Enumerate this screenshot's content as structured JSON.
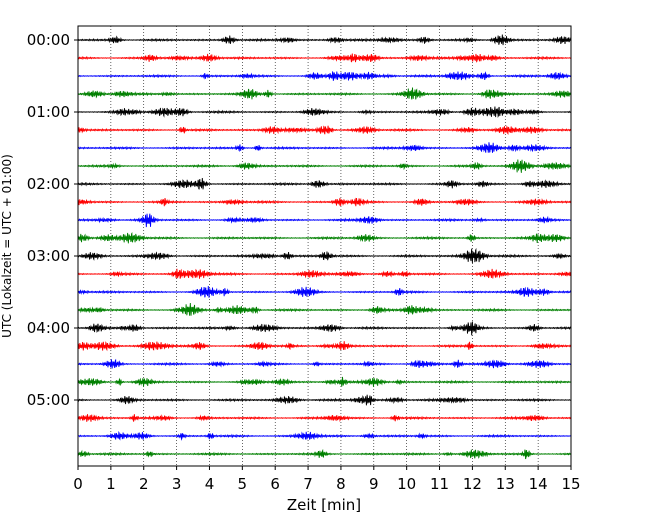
{
  "chart_data": {
    "type": "line",
    "xlabel": "Zeit  [min]",
    "ylabel": "UTC (Lokalzeit = UTC + 01:00)",
    "xlim": [
      0,
      15
    ],
    "x_ticks": [
      0,
      1,
      2,
      3,
      4,
      5,
      6,
      7,
      8,
      9,
      10,
      11,
      12,
      13,
      14,
      15
    ],
    "y_tick_labels": [
      "00:00",
      "01:00",
      "02:00",
      "03:00",
      "04:00",
      "05:00"
    ],
    "traces_per_hour": 4,
    "trace_minutes": 15,
    "trace_colors": [
      "#000000",
      "#ff0000",
      "#0000ff",
      "#008000"
    ],
    "grid": "vertical dotted lines at each minute",
    "series": [
      {
        "start": "00:00",
        "color": "#000000"
      },
      {
        "start": "00:15",
        "color": "#ff0000"
      },
      {
        "start": "00:30",
        "color": "#0000ff"
      },
      {
        "start": "00:45",
        "color": "#008000"
      },
      {
        "start": "01:00",
        "color": "#000000"
      },
      {
        "start": "01:15",
        "color": "#ff0000"
      },
      {
        "start": "01:30",
        "color": "#0000ff"
      },
      {
        "start": "01:45",
        "color": "#008000"
      },
      {
        "start": "02:00",
        "color": "#000000"
      },
      {
        "start": "02:15",
        "color": "#ff0000"
      },
      {
        "start": "02:30",
        "color": "#0000ff"
      },
      {
        "start": "02:45",
        "color": "#008000"
      },
      {
        "start": "03:00",
        "color": "#000000"
      },
      {
        "start": "03:15",
        "color": "#ff0000"
      },
      {
        "start": "03:30",
        "color": "#0000ff"
      },
      {
        "start": "03:45",
        "color": "#008000"
      },
      {
        "start": "04:00",
        "color": "#000000"
      },
      {
        "start": "04:15",
        "color": "#ff0000"
      },
      {
        "start": "04:30",
        "color": "#0000ff"
      },
      {
        "start": "04:45",
        "color": "#008000"
      },
      {
        "start": "05:00",
        "color": "#000000"
      },
      {
        "start": "05:15",
        "color": "#ff0000"
      },
      {
        "start": "05:30",
        "color": "#0000ff"
      },
      {
        "start": "05:45",
        "color": "#008000"
      }
    ]
  }
}
